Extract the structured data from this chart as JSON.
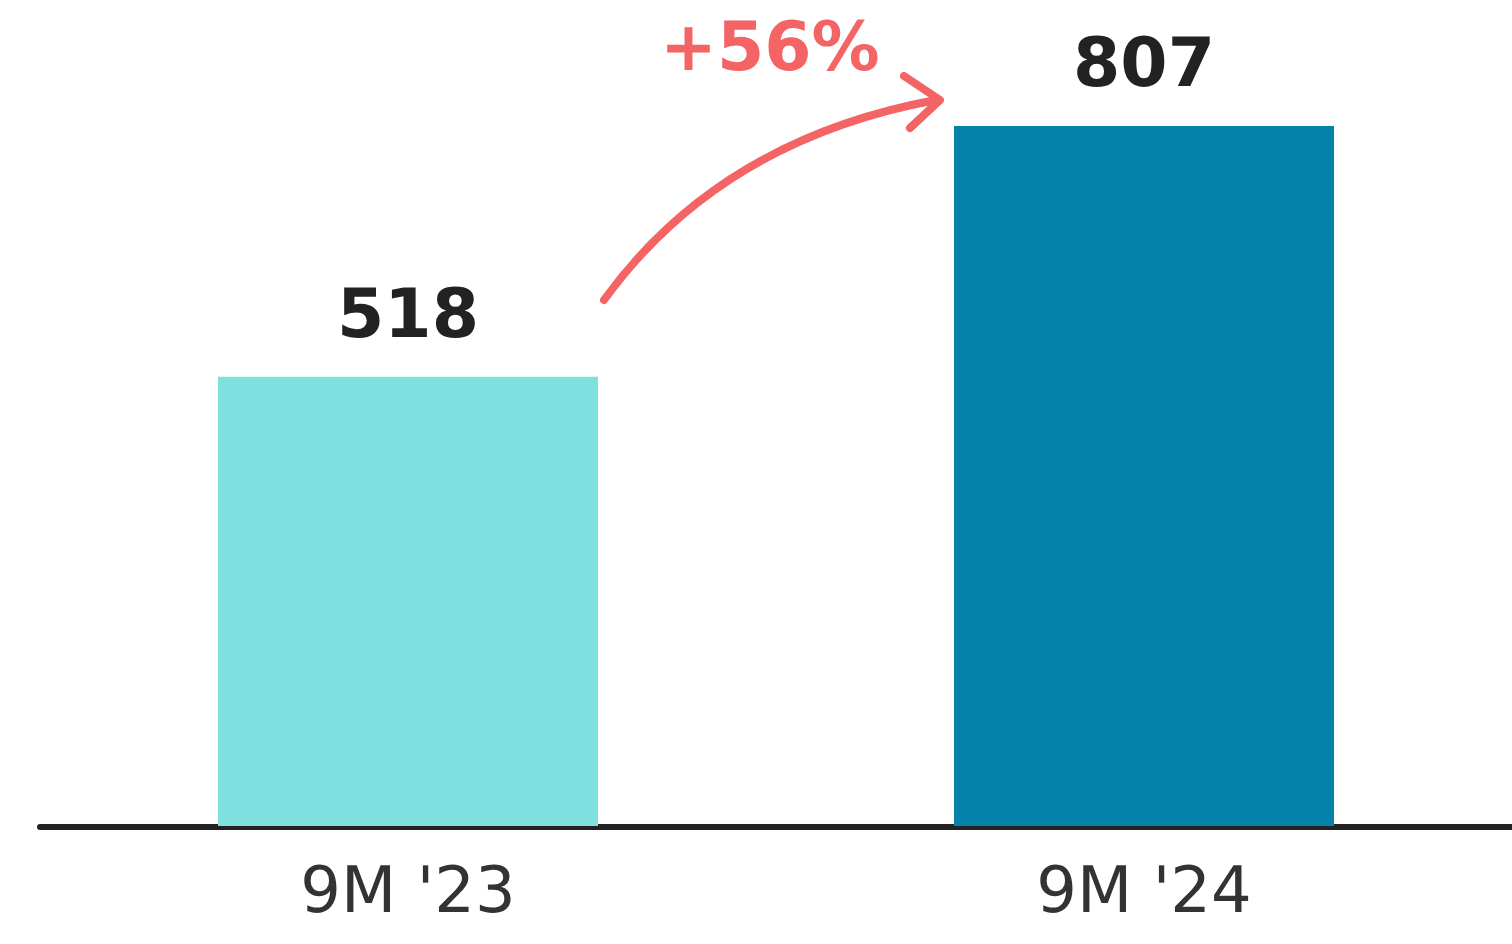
{
  "chart_data": {
    "type": "bar",
    "categories": [
      "9M '23",
      "9M '24"
    ],
    "values": [
      518,
      807
    ],
    "colors": [
      "#7fe0e0",
      "#0482ab"
    ],
    "data_labels": true,
    "annotations": [
      "+56%"
    ]
  }
}
